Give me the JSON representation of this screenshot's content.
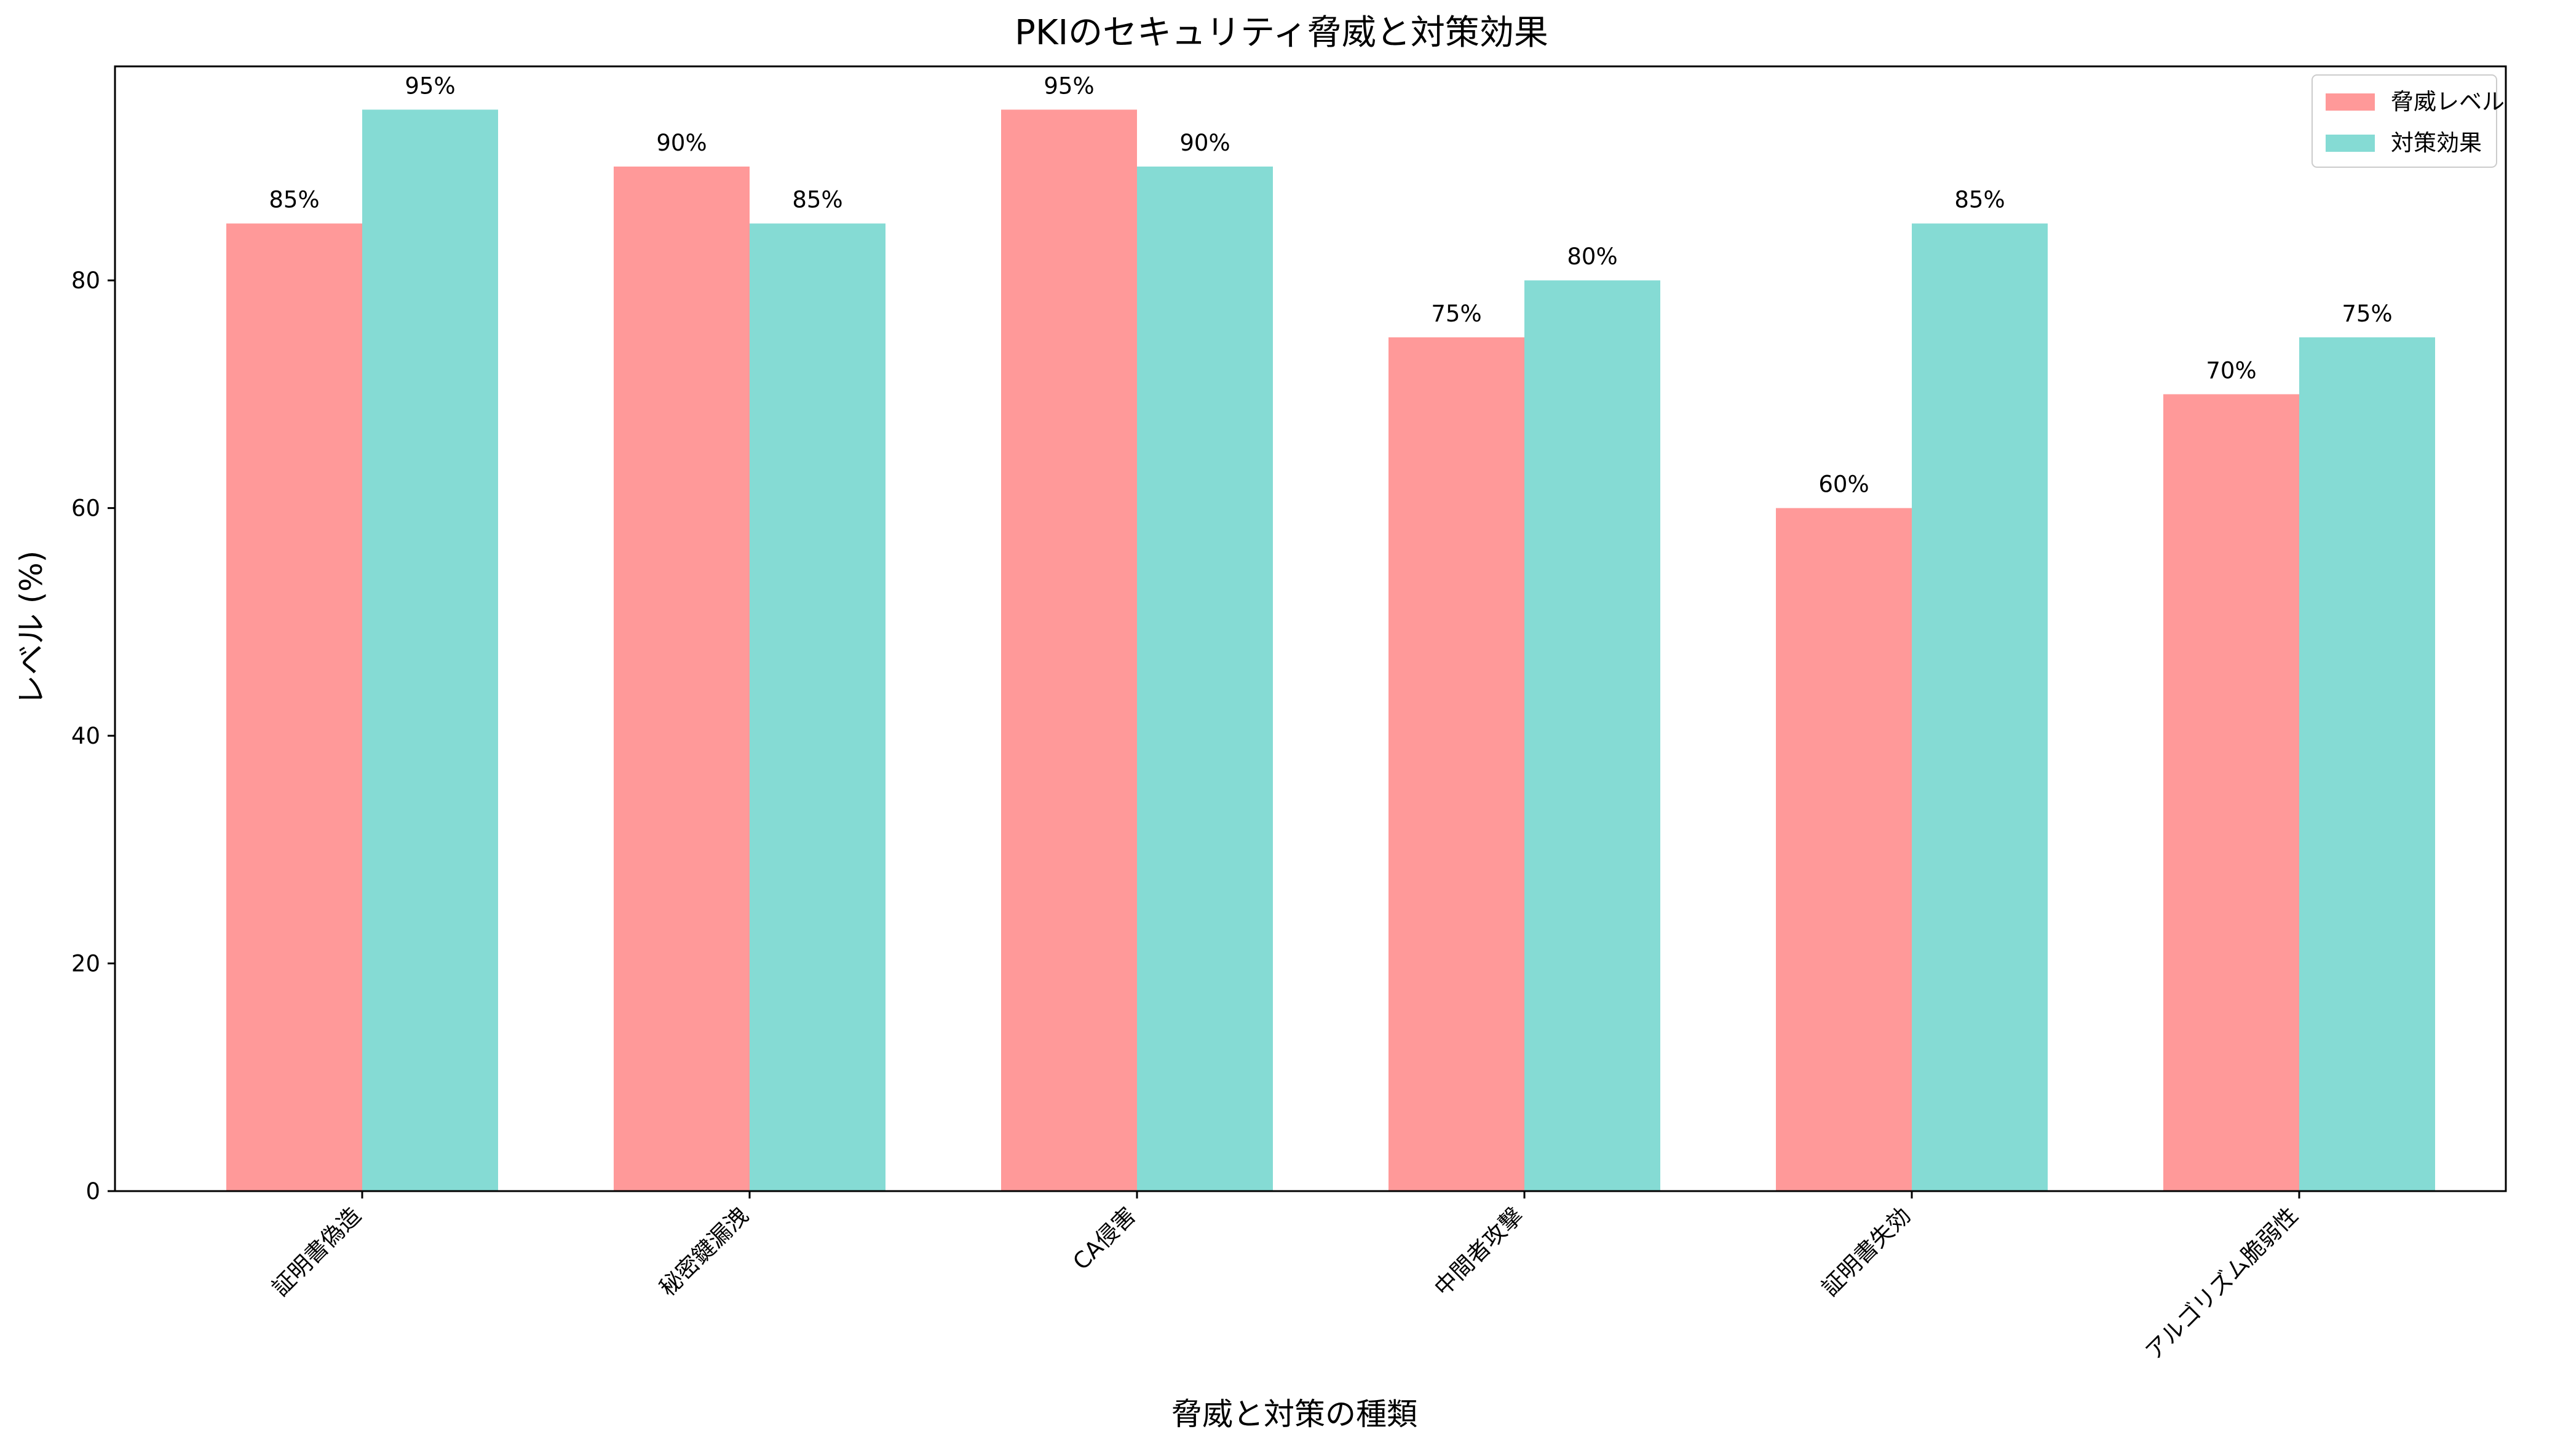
{
  "chart_data": {
    "type": "bar",
    "title": "PKIのセキュリティ脅威と対策効果",
    "xlabel": "脅威と対策の種類",
    "ylabel": "レベル (%)",
    "categories": [
      "証明書偽造",
      "秘密鍵漏洩",
      "CA侵害",
      "中間者攻撃",
      "証明書失効",
      "アルゴリズム脆弱性"
    ],
    "series": [
      {
        "name": "脅威レベル",
        "values": [
          85,
          90,
          95,
          75,
          60,
          70
        ],
        "color": "#ff9999"
      },
      {
        "name": "対策効果",
        "values": [
          95,
          85,
          90,
          80,
          85,
          75
        ],
        "color": "#85dbd4"
      }
    ],
    "ylim": [
      0,
      100
    ],
    "yticks": [
      0,
      20,
      40,
      60,
      80
    ],
    "value_suffix": "%",
    "legend": "top-right",
    "grid": false
  }
}
